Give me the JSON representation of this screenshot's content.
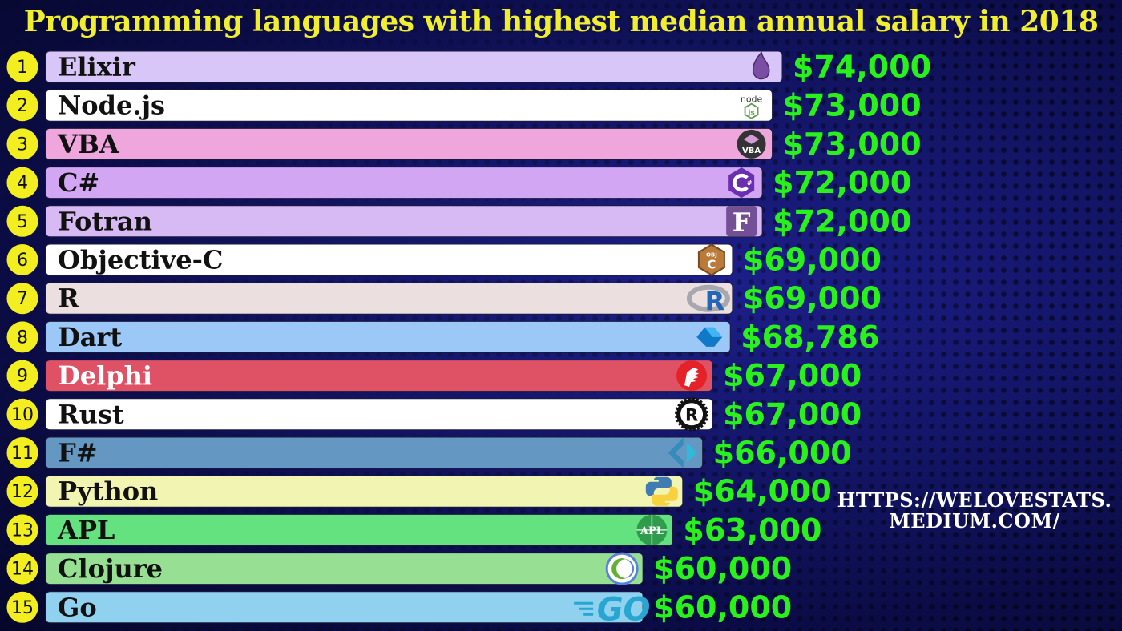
{
  "title": "Programming languages with highest median annual salary in 2018",
  "watermark": "HTTPS://WELOVESTATS.\nMEDIUM.COM/",
  "colors": {
    "title": "#f1ee2e",
    "value": "#29f21b",
    "rank_badge": "#f3ee1f"
  },
  "chart_data": {
    "type": "bar",
    "orientation": "horizontal",
    "title": "Programming languages with highest median annual salary in 2018",
    "categories": [
      "Elixir",
      "Node.js",
      "VBA",
      "C#",
      "Fotran",
      "Objective-C",
      "R",
      "Dart",
      "Delphi",
      "Rust",
      "F#",
      "Python",
      "APL",
      "Clojure",
      "Go"
    ],
    "ranks": [
      "1",
      "2",
      "3",
      "4",
      "5",
      "6",
      "7",
      "8",
      "9",
      "10",
      "11",
      "12",
      "13",
      "14",
      "15"
    ],
    "values": [
      74000,
      73000,
      73000,
      72000,
      72000,
      69000,
      69000,
      68786,
      67000,
      67000,
      66000,
      64000,
      63000,
      60000,
      60000
    ],
    "value_labels": [
      "$74,000",
      "$73,000",
      "$73,000",
      "$72,000",
      "$72,000",
      "$69,000",
      "$69,000",
      "$68,786",
      "$67,000",
      "$67,000",
      "$66,000",
      "$64,000",
      "$63,000",
      "$60,000",
      "$60,000"
    ],
    "bar_colors": [
      "#d8c6f8",
      "#ffffff",
      "#eea6dd",
      "#d3a6f4",
      "#d7b9f4",
      "#ffffff",
      "#ebe0df",
      "#9cc8f8",
      "#df5266",
      "#ffffff",
      "#6498c2",
      "#f2f4b2",
      "#63e27f",
      "#97e093",
      "#8fd1ee"
    ],
    "label_colors": [
      "#111111",
      "#111111",
      "#111111",
      "#111111",
      "#111111",
      "#111111",
      "#111111",
      "#111111",
      "#ffffff",
      "#111111",
      "#111111",
      "#111111",
      "#111111",
      "#111111",
      "#111111"
    ],
    "icons": [
      "elixir-icon",
      "nodejs-icon",
      "vba-icon",
      "csharp-icon",
      "fortran-icon",
      "objective-c-icon",
      "r-icon",
      "dart-icon",
      "delphi-icon",
      "rust-icon",
      "fsharp-icon",
      "python-icon",
      "apl-icon",
      "clojure-icon",
      "go-icon"
    ],
    "legend": "none",
    "grid": false
  }
}
